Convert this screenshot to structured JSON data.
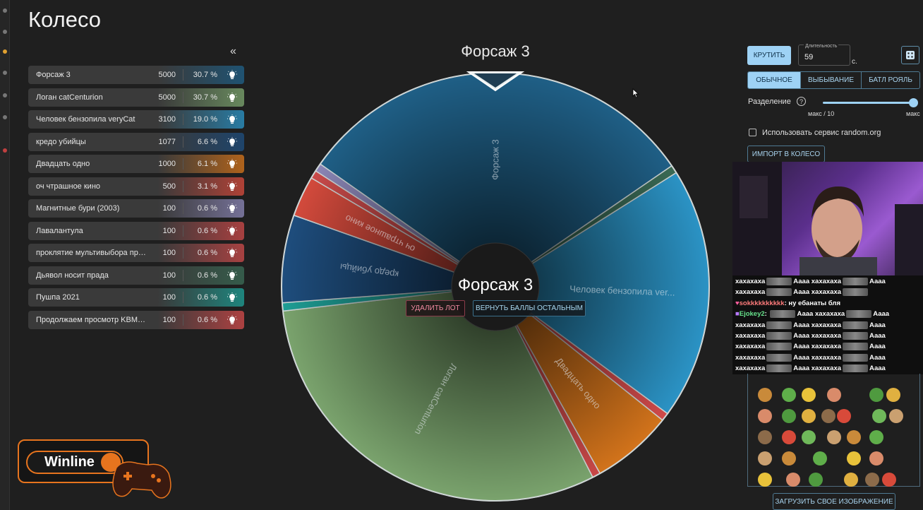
{
  "page": {
    "title": "Колесо",
    "collapse_glyph": "«"
  },
  "lots": [
    {
      "name": "Форсаж 3",
      "amount": "5000",
      "percent": "30.7 %",
      "color": "#1f5f86"
    },
    {
      "name": "Логан catCenturion",
      "amount": "5000",
      "percent": "30.7 %",
      "color": "#7aa36d"
    },
    {
      "name": "Человек бензопила veryCat",
      "amount": "3100",
      "percent": "19.0 %",
      "color": "#2b93c5"
    },
    {
      "name": "кредо убийцы",
      "amount": "1077",
      "percent": "6.6 %",
      "color": "#1e4d7d"
    },
    {
      "name": "Двадцать одно",
      "amount": "1000",
      "percent": "6.1 %",
      "color": "#d2731b"
    },
    {
      "name": "оч чтрашное кино",
      "amount": "500",
      "percent": "3.1 %",
      "color": "#d34a3c"
    },
    {
      "name": "Магнитные бури (2003)",
      "amount": "100",
      "percent": "0.6 %",
      "color": "#8a85b5"
    },
    {
      "name": "Лавалантула",
      "amount": "100",
      "percent": "0.6 %",
      "color": "#c94848"
    },
    {
      "name": "проклятие мультивыбора превра...",
      "amount": "100",
      "percent": "0.6 %",
      "color": "#c94a4a"
    },
    {
      "name": "Дьявол носит прада",
      "amount": "100",
      "percent": "0.6 %",
      "color": "#3a6a55"
    },
    {
      "name": "Пушпа 2021",
      "amount": "100",
      "percent": "0.6 %",
      "color": "#1e9e95"
    },
    {
      "name": "Продолжаем просмотр KBM. Ве...",
      "amount": "100",
      "percent": "0.6 %",
      "color": "#d04a4a"
    }
  ],
  "wheel": {
    "selected_title": "Форсаж 3",
    "center_title": "Форсаж 3",
    "delete_label": "УДАЛИТЬ ЛОТ",
    "return_label": "ВЕРНУТЬ БАЛЛЫ ОСТАЛЬНЫМ",
    "segment_labels": {
      "forsazh": "Форсаж 3",
      "chelovek": "Человек бензопила ver...",
      "dvadtsat": "Двадцать одно",
      "logan": "Логан catCenturion",
      "kredo": "кредо убийцы",
      "och": "оч чтрашное кино"
    }
  },
  "controls": {
    "spin_label": "КРУТИТЬ",
    "duration_label": "Длительность",
    "duration_value": "59",
    "seconds_label": "с.",
    "modes": [
      "ОБЫЧНОЕ",
      "ВЫБЫВАНИЕ",
      "БАТЛ РОЯЛЬ"
    ],
    "active_mode": "ОБЫЧНОЕ",
    "split_label": "Разделение",
    "split_min": "макс / 10",
    "split_max": "макс",
    "split_level": 1.0,
    "random_org_label": "Использовать сервис random.org",
    "random_org_checked": false,
    "import_label": "ИМПОРТ В КОЛЕСО",
    "upload_label": "ЗАГРУЗИТЬ СВОЕ ИЗОБРАЖЕНИЕ"
  },
  "chat": [
    {
      "parts": [
        "хахахаха",
        "emote",
        "Аааа хахахаха",
        "emote",
        "Аааа"
      ]
    },
    {
      "parts": [
        "хахахаха",
        "emote",
        "Аааа хахахаха",
        "emote"
      ]
    },
    {
      "user": "sokkkkkkkkkk",
      "user_class": "user-red",
      "badge": "heart",
      "message": "ну ебанаты бля"
    },
    {
      "user": "Ejokey2",
      "user_class": "user-green",
      "badge": "sub",
      "parts_after": [
        "emote",
        "Аааа хахахаха",
        "emote",
        "Аааа"
      ]
    },
    {
      "parts": [
        "хахахаха",
        "emote",
        "Аааа хахахаха",
        "emote",
        "Аааа"
      ]
    },
    {
      "parts": [
        "хахахаха",
        "emote",
        "Аааа хахахаха",
        "emote",
        "Аааа"
      ]
    },
    {
      "parts": [
        "хахахаха",
        "emote",
        "Аааа хахахаха",
        "emote",
        "Аааа"
      ]
    },
    {
      "parts": [
        "хахахаха",
        "emote",
        "Аааа хахахаха",
        "emote",
        "Аааа"
      ]
    },
    {
      "parts": [
        "хахахаха",
        "emote",
        "Аааа хахахаха",
        "emote",
        "Аааа"
      ]
    }
  ],
  "sponsor": {
    "logo_text": "Winline"
  },
  "icons": {
    "lot_action": "lightbulb-icon",
    "dice": "dice-icon",
    "help": "help-circle-icon",
    "collapse": "double-chevron-left-icon"
  }
}
